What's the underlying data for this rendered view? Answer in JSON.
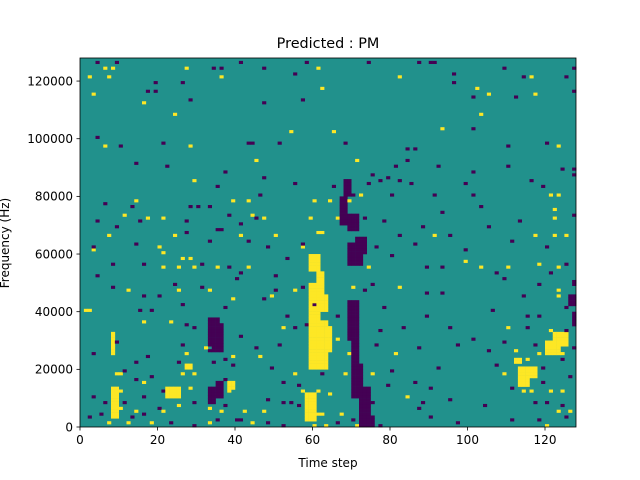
{
  "chart_data": {
    "type": "heatmap",
    "title": "Predicted : PM",
    "xlabel": "Time step",
    "ylabel": "Frequency (Hz)",
    "xlim": [
      0,
      128
    ],
    "ylim": [
      0,
      128000
    ],
    "x_ticks": [
      0,
      20,
      40,
      60,
      80,
      100,
      120
    ],
    "y_ticks": [
      0,
      20000,
      40000,
      60000,
      80000,
      100000,
      120000
    ],
    "colormap": "viridis",
    "value_levels": {
      "low": 0,
      "mid": 1,
      "high": 2
    },
    "colors": {
      "low": "#440154",
      "mid": "#21918c",
      "high": "#fde725"
    },
    "background_value": 1,
    "high_cells": [
      [
        6,
        124
      ],
      [
        8,
        124
      ],
      [
        27,
        124
      ],
      [
        61,
        124
      ],
      [
        128,
        124
      ],
      [
        2,
        121
      ],
      [
        7,
        121
      ],
      [
        36,
        121
      ],
      [
        82,
        121
      ],
      [
        116,
        121
      ],
      [
        3,
        115
      ],
      [
        62,
        117
      ],
      [
        102,
        117
      ],
      [
        105,
        115
      ],
      [
        117,
        115
      ],
      [
        16,
        112
      ],
      [
        24,
        108
      ],
      [
        54,
        102
      ],
      [
        65,
        102
      ],
      [
        93,
        103
      ],
      [
        103,
        108
      ],
      [
        6,
        97
      ],
      [
        28,
        97
      ],
      [
        45,
        92
      ],
      [
        71,
        92
      ],
      [
        123,
        97
      ],
      [
        129,
        92
      ],
      [
        29,
        85
      ],
      [
        14,
        78
      ],
      [
        39,
        78
      ],
      [
        43,
        78
      ],
      [
        60,
        78
      ],
      [
        64,
        78
      ],
      [
        69,
        78
      ],
      [
        72,
        80
      ],
      [
        121,
        80
      ],
      [
        123,
        80
      ],
      [
        11,
        73
      ],
      [
        17,
        72
      ],
      [
        21,
        72
      ],
      [
        44,
        73
      ],
      [
        47,
        72
      ],
      [
        59,
        72
      ],
      [
        66,
        72
      ],
      [
        68,
        72
      ],
      [
        122,
        72
      ],
      [
        122,
        75
      ],
      [
        7,
        66
      ],
      [
        24,
        66
      ],
      [
        41,
        66
      ],
      [
        50,
        66
      ],
      [
        61,
        67
      ],
      [
        62,
        67
      ],
      [
        91,
        66
      ],
      [
        117,
        66
      ],
      [
        122,
        66
      ],
      [
        125,
        66
      ],
      [
        3,
        61
      ],
      [
        20,
        62
      ],
      [
        21,
        60
      ],
      [
        26,
        58
      ],
      [
        28,
        58
      ],
      [
        57,
        62
      ],
      [
        21,
        55
      ],
      [
        25,
        55
      ],
      [
        29,
        55
      ],
      [
        35,
        55
      ],
      [
        43,
        55
      ],
      [
        60,
        56
      ],
      [
        69,
        56
      ],
      [
        74,
        55
      ],
      [
        99,
        57
      ],
      [
        103,
        55
      ],
      [
        110,
        55
      ],
      [
        118,
        56
      ],
      [
        123,
        55
      ],
      [
        12,
        47
      ],
      [
        25,
        47
      ],
      [
        33,
        47
      ],
      [
        39,
        44
      ],
      [
        49,
        45
      ],
      [
        55,
        47
      ],
      [
        70,
        48
      ],
      [
        82,
        48
      ],
      [
        123,
        45
      ],
      [
        123,
        47
      ],
      [
        1,
        40
      ],
      [
        2,
        40
      ],
      [
        16,
        36
      ],
      [
        23,
        36
      ],
      [
        35,
        36
      ],
      [
        52,
        34
      ],
      [
        59,
        30
      ],
      [
        66,
        30
      ],
      [
        110,
        34
      ],
      [
        121,
        33
      ],
      [
        122,
        30
      ],
      [
        124,
        30
      ],
      [
        128,
        30
      ],
      [
        27,
        25
      ],
      [
        32,
        27
      ],
      [
        39,
        24
      ],
      [
        46,
        24
      ],
      [
        62,
        26
      ],
      [
        69,
        25
      ],
      [
        81,
        25
      ],
      [
        112,
        26
      ],
      [
        115,
        23
      ],
      [
        118,
        25
      ],
      [
        120,
        25
      ],
      [
        124,
        25
      ],
      [
        9,
        18
      ],
      [
        10,
        18
      ],
      [
        16,
        15
      ],
      [
        26,
        18
      ],
      [
        29,
        18
      ],
      [
        55,
        18
      ],
      [
        68,
        18
      ],
      [
        75,
        18
      ],
      [
        109,
        18
      ],
      [
        113,
        17
      ],
      [
        9,
        12
      ],
      [
        10,
        12
      ],
      [
        28,
        13
      ],
      [
        33,
        12
      ],
      [
        38,
        12
      ],
      [
        57,
        12
      ],
      [
        61,
        12
      ],
      [
        64,
        11
      ],
      [
        72,
        12
      ],
      [
        84,
        10
      ],
      [
        114,
        12
      ],
      [
        116,
        12
      ],
      [
        121,
        12
      ],
      [
        124,
        12
      ],
      [
        9,
        6
      ],
      [
        10,
        6
      ],
      [
        14,
        5
      ],
      [
        21,
        5
      ],
      [
        25,
        7
      ],
      [
        33,
        6
      ],
      [
        36,
        5
      ],
      [
        42,
        5
      ],
      [
        47,
        5
      ],
      [
        61,
        4
      ],
      [
        62,
        4
      ],
      [
        67,
        4
      ],
      [
        123,
        5
      ],
      [
        126,
        5
      ],
      [
        7,
        1
      ],
      [
        12,
        1
      ],
      [
        18,
        1
      ],
      [
        33,
        1
      ],
      [
        44,
        1
      ],
      [
        60,
        0
      ],
      [
        63,
        0
      ],
      [
        71,
        0
      ],
      [
        120,
        0
      ]
    ],
    "high_blocks": [
      [
        59,
        64,
        20,
        37
      ],
      [
        59,
        62,
        30,
        40
      ],
      [
        59,
        62,
        35,
        50
      ],
      [
        58,
        61,
        2,
        12
      ],
      [
        63,
        65,
        26,
        35
      ],
      [
        61,
        63,
        46,
        54
      ],
      [
        62,
        64,
        40,
        46
      ],
      [
        59,
        62,
        54,
        60
      ],
      [
        8,
        10,
        3,
        14
      ],
      [
        8,
        9,
        25,
        33
      ],
      [
        22,
        26,
        10,
        14
      ],
      [
        27,
        29,
        20,
        22
      ],
      [
        38,
        40,
        13,
        16
      ],
      [
        120,
        124,
        25,
        30
      ],
      [
        113,
        116,
        14,
        21
      ],
      [
        112,
        114,
        22,
        24
      ],
      [
        122,
        126,
        28,
        33
      ],
      [
        116,
        118,
        17,
        21
      ]
    ],
    "low_cells": [
      [
        4,
        126
      ],
      [
        9,
        126
      ],
      [
        18,
        128
      ],
      [
        34,
        124
      ],
      [
        36,
        124
      ],
      [
        41,
        126
      ],
      [
        58,
        126
      ],
      [
        74,
        126
      ],
      [
        87,
        126
      ],
      [
        90,
        126
      ],
      [
        91,
        126
      ],
      [
        109,
        124
      ],
      [
        127,
        124
      ],
      [
        19,
        119
      ],
      [
        26,
        119
      ],
      [
        47,
        124
      ],
      [
        55,
        122
      ],
      [
        96,
        122
      ],
      [
        114,
        121
      ],
      [
        125,
        121
      ],
      [
        17,
        116
      ],
      [
        19,
        116
      ],
      [
        28,
        113
      ],
      [
        47,
        112
      ],
      [
        57,
        113
      ],
      [
        96,
        119
      ],
      [
        101,
        114
      ],
      [
        112,
        114
      ],
      [
        127,
        116
      ],
      [
        4,
        100
      ],
      [
        10,
        97
      ],
      [
        21,
        98
      ],
      [
        43,
        98
      ],
      [
        44,
        98
      ],
      [
        51,
        98
      ],
      [
        68,
        98
      ],
      [
        84,
        96
      ],
      [
        86,
        96
      ],
      [
        101,
        103
      ],
      [
        110,
        97
      ],
      [
        120,
        98
      ],
      [
        14,
        91
      ],
      [
        22,
        90
      ],
      [
        37,
        88
      ],
      [
        75,
        87
      ],
      [
        81,
        90
      ],
      [
        84,
        92
      ],
      [
        92,
        90
      ],
      [
        101,
        88
      ],
      [
        110,
        90
      ],
      [
        127,
        89
      ],
      [
        35,
        83
      ],
      [
        47,
        86
      ],
      [
        55,
        84
      ],
      [
        65,
        83
      ],
      [
        77,
        85
      ],
      [
        79,
        86
      ],
      [
        82,
        85
      ],
      [
        99,
        84
      ],
      [
        116,
        85
      ],
      [
        119,
        83
      ],
      [
        124,
        89
      ],
      [
        127,
        87
      ],
      [
        6,
        77
      ],
      [
        13,
        76
      ],
      [
        28,
        76
      ],
      [
        30,
        76
      ],
      [
        33,
        76
      ],
      [
        46,
        80
      ],
      [
        70,
        80
      ],
      [
        74,
        84
      ],
      [
        80,
        80
      ],
      [
        85,
        84
      ],
      [
        91,
        80
      ],
      [
        101,
        80
      ],
      [
        103,
        76
      ],
      [
        4,
        71
      ],
      [
        9,
        69
      ],
      [
        15,
        71
      ],
      [
        27,
        71
      ],
      [
        35,
        68
      ],
      [
        36,
        68
      ],
      [
        38,
        73
      ],
      [
        41,
        70
      ],
      [
        45,
        72
      ],
      [
        73,
        72
      ],
      [
        78,
        71
      ],
      [
        88,
        69
      ],
      [
        93,
        74
      ],
      [
        105,
        69
      ],
      [
        113,
        71
      ],
      [
        127,
        73
      ],
      [
        3,
        62
      ],
      [
        14,
        63
      ],
      [
        27,
        67
      ],
      [
        33,
        64
      ],
      [
        43,
        64
      ],
      [
        48,
        62
      ],
      [
        57,
        63
      ],
      [
        76,
        62
      ],
      [
        82,
        66
      ],
      [
        86,
        63
      ],
      [
        95,
        66
      ],
      [
        99,
        61
      ],
      [
        111,
        64
      ],
      [
        120,
        62
      ],
      [
        4,
        52
      ],
      [
        8,
        56
      ],
      [
        16,
        56
      ],
      [
        31,
        56
      ],
      [
        38,
        55
      ],
      [
        41,
        53
      ],
      [
        50,
        52
      ],
      [
        53,
        58
      ],
      [
        80,
        59
      ],
      [
        89,
        55
      ],
      [
        93,
        55
      ],
      [
        107,
        53
      ],
      [
        121,
        53
      ],
      [
        125,
        56
      ],
      [
        8,
        48
      ],
      [
        16,
        45
      ],
      [
        20,
        45
      ],
      [
        24,
        49
      ],
      [
        31,
        48
      ],
      [
        40,
        51
      ],
      [
        50,
        47
      ],
      [
        57,
        48
      ],
      [
        73,
        47
      ],
      [
        75,
        49
      ],
      [
        89,
        46
      ],
      [
        93,
        46
      ],
      [
        109,
        51
      ],
      [
        114,
        45
      ],
      [
        118,
        49
      ],
      [
        15,
        40
      ],
      [
        18,
        40
      ],
      [
        26,
        42
      ],
      [
        37,
        41
      ],
      [
        47,
        44
      ],
      [
        53,
        38
      ],
      [
        60,
        42
      ],
      [
        66,
        38
      ],
      [
        70,
        37
      ],
      [
        78,
        41
      ],
      [
        89,
        38
      ],
      [
        106,
        40
      ],
      [
        115,
        38
      ],
      [
        118,
        38
      ],
      [
        125,
        41
      ],
      [
        27,
        35
      ],
      [
        29,
        34
      ],
      [
        41,
        31
      ],
      [
        55,
        34
      ],
      [
        58,
        35
      ],
      [
        77,
        33
      ],
      [
        83,
        34
      ],
      [
        95,
        34
      ],
      [
        101,
        30
      ],
      [
        115,
        34
      ],
      [
        125,
        33
      ],
      [
        3,
        25
      ],
      [
        9,
        29
      ],
      [
        26,
        28
      ],
      [
        33,
        26
      ],
      [
        35,
        26
      ],
      [
        45,
        27
      ],
      [
        51,
        28
      ],
      [
        76,
        28
      ],
      [
        87,
        27
      ],
      [
        97,
        28
      ],
      [
        105,
        26
      ],
      [
        109,
        29
      ],
      [
        117,
        28
      ],
      [
        127,
        27
      ],
      [
        11,
        19
      ],
      [
        14,
        22
      ],
      [
        17,
        24
      ],
      [
        25,
        22
      ],
      [
        34,
        22
      ],
      [
        37,
        23
      ],
      [
        39,
        21
      ],
      [
        49,
        20
      ],
      [
        62,
        18
      ],
      [
        71,
        21
      ],
      [
        80,
        19
      ],
      [
        92,
        20
      ],
      [
        107,
        21
      ],
      [
        119,
        20
      ],
      [
        124,
        23
      ],
      [
        14,
        16
      ],
      [
        18,
        17
      ],
      [
        21,
        12
      ],
      [
        35,
        15
      ],
      [
        37,
        16
      ],
      [
        52,
        15
      ],
      [
        56,
        14
      ],
      [
        79,
        14
      ],
      [
        86,
        15
      ],
      [
        90,
        13
      ],
      [
        111,
        13
      ],
      [
        119,
        15
      ],
      [
        126,
        17
      ],
      [
        3,
        10
      ],
      [
        6,
        8
      ],
      [
        11,
        8
      ],
      [
        16,
        10
      ],
      [
        20,
        6
      ],
      [
        29,
        8
      ],
      [
        34,
        9
      ],
      [
        37,
        7
      ],
      [
        48,
        9
      ],
      [
        52,
        8
      ],
      [
        54,
        8
      ],
      [
        56,
        7
      ],
      [
        75,
        8
      ],
      [
        87,
        6
      ],
      [
        88,
        8
      ],
      [
        95,
        9
      ],
      [
        104,
        7
      ],
      [
        117,
        8
      ],
      [
        120,
        8
      ],
      [
        124,
        7
      ],
      [
        2,
        3
      ],
      [
        5,
        4
      ],
      [
        13,
        3
      ],
      [
        16,
        4
      ],
      [
        23,
        1
      ],
      [
        29,
        0
      ],
      [
        35,
        2
      ],
      [
        40,
        2
      ],
      [
        41,
        2
      ],
      [
        48,
        1
      ],
      [
        52,
        0
      ],
      [
        66,
        1
      ],
      [
        70,
        2
      ],
      [
        77,
        0
      ],
      [
        90,
        3
      ],
      [
        97,
        1
      ],
      [
        111,
        2
      ],
      [
        118,
        2
      ],
      [
        125,
        3
      ]
    ],
    "low_blocks": [
      [
        69,
        72,
        68,
        74
      ],
      [
        69,
        73,
        56,
        64
      ],
      [
        71,
        74,
        60,
        66
      ],
      [
        69,
        72,
        30,
        44
      ],
      [
        70,
        73,
        10,
        22
      ],
      [
        72,
        75,
        4,
        14
      ],
      [
        72,
        76,
        0,
        4
      ],
      [
        70,
        72,
        22,
        30
      ],
      [
        67,
        69,
        70,
        80
      ],
      [
        68,
        70,
        80,
        86
      ],
      [
        72,
        75,
        0,
        2
      ],
      [
        34,
        37,
        26,
        36
      ],
      [
        33,
        36,
        28,
        38
      ],
      [
        33,
        35,
        8,
        14
      ],
      [
        35,
        37,
        10,
        16
      ],
      [
        127,
        129,
        35,
        40
      ],
      [
        126,
        128,
        42,
        46
      ],
      [
        127,
        129,
        49,
        51
      ]
    ]
  }
}
